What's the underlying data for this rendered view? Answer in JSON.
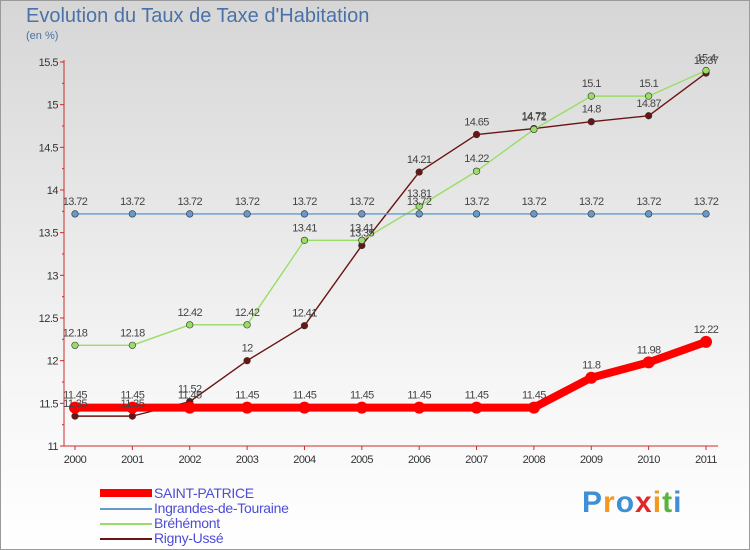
{
  "chart_data": {
    "type": "line",
    "title": "Evolution du Taux de Taxe d'Habitation",
    "ylabel": "(en %)",
    "xlabel": "",
    "categories": [
      "2000",
      "2001",
      "2002",
      "2003",
      "2004",
      "2005",
      "2006",
      "2007",
      "2008",
      "2009",
      "2010",
      "2011"
    ],
    "y_ticks": [
      "11",
      "11.5",
      "12",
      "12.5",
      "13",
      "13.5",
      "14",
      "14.5",
      "15",
      "15.5"
    ],
    "ylim": [
      11,
      15.5
    ],
    "grid": false,
    "legend_position": "bottom-left",
    "series": [
      {
        "name": "Rigny-Ussé",
        "color": "#6b1414",
        "values": [
          11.35,
          11.35,
          11.52,
          12,
          12.41,
          13.35,
          14.21,
          14.65,
          14.72,
          14.8,
          14.87,
          15.37
        ],
        "labels": [
          "11.35",
          "11.35",
          "11.52",
          "12",
          "12.41",
          "13.35",
          "14.21",
          "14.65",
          "14.72",
          "14.8",
          "14.87",
          "15.37"
        ]
      },
      {
        "name": "Bréhémont",
        "color": "#99dd66",
        "values": [
          12.18,
          12.18,
          12.42,
          12.42,
          13.41,
          13.41,
          13.81,
          14.22,
          14.71,
          15.1,
          15.1,
          15.4
        ],
        "labels": [
          "12.18",
          "12.18",
          "12.42",
          "12.42",
          "13.41",
          "13.41",
          "13.81",
          "14.22",
          "14.71",
          "15.1",
          "15.1",
          "15.4"
        ]
      },
      {
        "name": "Ingrandes-de-Touraine",
        "color": "#6699cc",
        "values": [
          13.72,
          13.72,
          13.72,
          13.72,
          13.72,
          13.72,
          13.72,
          13.72,
          13.72,
          13.72,
          13.72,
          13.72
        ],
        "labels": [
          "13.72",
          "13.72",
          "13.72",
          "13.72",
          "13.72",
          "13.72",
          "13.72",
          "13.72",
          "13.72",
          "13.72",
          "13.72",
          "13.72"
        ]
      },
      {
        "name": "SAINT-PATRICE",
        "color": "#ff0000",
        "values": [
          11.45,
          11.45,
          11.45,
          11.45,
          11.45,
          11.45,
          11.45,
          11.45,
          11.45,
          11.8,
          11.98,
          12.22
        ],
        "labels": [
          "11.45",
          "11.45",
          "11.45",
          "11.45",
          "11.45",
          "11.45",
          "11.45",
          "11.45",
          "11.45",
          "11.8",
          "11.98",
          "12.22"
        ]
      }
    ]
  },
  "legend": {
    "items": [
      {
        "label": "SAINT-PATRICE",
        "color": "#ff0000"
      },
      {
        "label": "Ingrandes-de-Touraine",
        "color": "#6699cc"
      },
      {
        "label": "Bréhémont",
        "color": "#99dd66"
      },
      {
        "label": "Rigny-Ussé",
        "color": "#6b1414"
      }
    ]
  },
  "logo": {
    "letters": [
      "P",
      "r",
      "o",
      "x",
      "i",
      "t",
      "i"
    ],
    "colors": [
      "#3d8fd6",
      "#f39a1e",
      "#3d8fd6",
      "#e0262a",
      "#f39a1e",
      "#5bb33e",
      "#3d8fd6"
    ]
  }
}
